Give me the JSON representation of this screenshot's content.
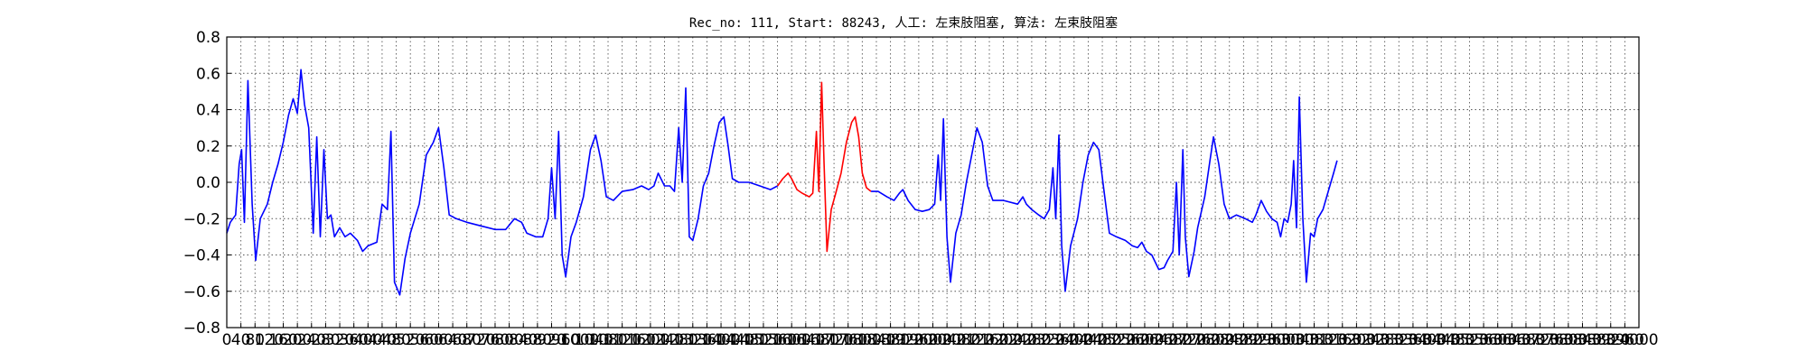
{
  "chart_data": {
    "type": "line",
    "title": "Rec_no: 111, Start: 88243, 人工: 左束肢阻塞, 算法: 左束肢阻塞",
    "xlabel": "",
    "ylabel": "",
    "xlim": [
      0,
      4000
    ],
    "ylim": [
      -0.8,
      0.8
    ],
    "grid": true,
    "colors": {
      "normal": "#0000ff",
      "highlight": "#ff0000",
      "grid": "#555555"
    },
    "x_tick_labels": [
      "0",
      "40",
      "80",
      "120",
      "160",
      "200",
      "240",
      "280",
      "320",
      "360",
      "400",
      "440",
      "480",
      "520",
      "560",
      "600",
      "640",
      "680",
      "720",
      "760",
      "800",
      "840",
      "880",
      "920",
      "960",
      "1000",
      "1040",
      "1080",
      "1120",
      "1160",
      "1200",
      "1240",
      "1280",
      "1320",
      "1360",
      "1400",
      "1440",
      "1480",
      "1520",
      "1560",
      "1600",
      "1640",
      "1680",
      "1720",
      "1760",
      "1800",
      "1840",
      "1880",
      "1920",
      "1960",
      "2000",
      "2040",
      "2080",
      "2120",
      "2160",
      "2200",
      "2240",
      "2280",
      "2320",
      "2360",
      "2400",
      "2440",
      "2480",
      "2520",
      "2560",
      "2600",
      "2640",
      "2680",
      "2720",
      "2760",
      "2800",
      "2840",
      "2880",
      "2920",
      "2960",
      "3000",
      "3040",
      "3080",
      "3120",
      "3160",
      "3200",
      "3240",
      "3280",
      "3320",
      "3360",
      "3400",
      "3440",
      "3480",
      "3520",
      "3560",
      "3600",
      "3640",
      "3680",
      "3720",
      "3760",
      "3800",
      "3840",
      "3880",
      "3920",
      "3960",
      "4000"
    ],
    "y_tick_labels": [
      "−0.8",
      "−0.6",
      "−0.4",
      "−0.2",
      "0.0",
      "0.2",
      "0.4",
      "0.6",
      "0.8"
    ],
    "y_ticks": [
      -0.8,
      -0.6,
      -0.4,
      -0.2,
      0.0,
      0.2,
      0.4,
      0.6,
      0.8
    ],
    "series": [
      {
        "highlight": false,
        "points": [
          [
            0,
            -0.28
          ],
          [
            10,
            -0.22
          ],
          [
            25,
            -0.18
          ],
          [
            35,
            0.1
          ],
          [
            42,
            0.18
          ],
          [
            50,
            -0.22
          ],
          [
            60,
            0.56
          ],
          [
            72,
            -0.12
          ],
          [
            82,
            -0.43
          ],
          [
            95,
            -0.2
          ],
          [
            115,
            -0.12
          ],
          [
            130,
            0.0
          ],
          [
            145,
            0.1
          ],
          [
            160,
            0.22
          ],
          [
            175,
            0.37
          ],
          [
            188,
            0.46
          ],
          [
            200,
            0.38
          ],
          [
            210,
            0.62
          ],
          [
            220,
            0.43
          ],
          [
            232,
            0.3
          ],
          [
            245,
            -0.28
          ],
          [
            255,
            0.25
          ],
          [
            265,
            -0.3
          ],
          [
            275,
            0.18
          ],
          [
            285,
            -0.2
          ],
          [
            295,
            -0.18
          ],
          [
            305,
            -0.3
          ],
          [
            320,
            -0.25
          ],
          [
            335,
            -0.3
          ],
          [
            350,
            -0.28
          ],
          [
            370,
            -0.32
          ],
          [
            385,
            -0.38
          ],
          [
            400,
            -0.35
          ],
          [
            425,
            -0.33
          ],
          [
            440,
            -0.12
          ],
          [
            455,
            -0.15
          ],
          [
            465,
            0.28
          ],
          [
            475,
            -0.55
          ],
          [
            490,
            -0.62
          ],
          [
            505,
            -0.42
          ],
          [
            520,
            -0.28
          ],
          [
            545,
            -0.12
          ],
          [
            565,
            0.15
          ],
          [
            585,
            0.22
          ],
          [
            600,
            0.3
          ],
          [
            615,
            0.08
          ],
          [
            630,
            -0.18
          ],
          [
            650,
            -0.2
          ],
          [
            680,
            -0.22
          ],
          [
            720,
            -0.24
          ],
          [
            760,
            -0.26
          ],
          [
            790,
            -0.26
          ],
          [
            815,
            -0.2
          ],
          [
            835,
            -0.22
          ],
          [
            850,
            -0.28
          ],
          [
            875,
            -0.3
          ],
          [
            895,
            -0.3
          ],
          [
            910,
            -0.2
          ],
          [
            920,
            0.08
          ],
          [
            930,
            -0.2
          ],
          [
            940,
            0.28
          ],
          [
            950,
            -0.4
          ],
          [
            960,
            -0.52
          ],
          [
            975,
            -0.3
          ],
          [
            990,
            -0.22
          ],
          [
            1010,
            -0.08
          ],
          [
            1030,
            0.18
          ],
          [
            1045,
            0.26
          ],
          [
            1060,
            0.12
          ],
          [
            1075,
            -0.08
          ],
          [
            1095,
            -0.1
          ],
          [
            1120,
            -0.05
          ],
          [
            1150,
            -0.04
          ],
          [
            1175,
            -0.02
          ],
          [
            1195,
            -0.04
          ],
          [
            1210,
            -0.02
          ],
          [
            1222,
            0.05
          ],
          [
            1240,
            -0.02
          ],
          [
            1255,
            -0.02
          ],
          [
            1268,
            -0.05
          ],
          [
            1280,
            0.3
          ],
          [
            1290,
            0.0
          ],
          [
            1300,
            0.52
          ],
          [
            1310,
            -0.3
          ],
          [
            1320,
            -0.32
          ],
          [
            1335,
            -0.2
          ],
          [
            1350,
            -0.02
          ],
          [
            1365,
            0.05
          ],
          [
            1380,
            0.2
          ],
          [
            1395,
            0.33
          ],
          [
            1408,
            0.36
          ],
          [
            1420,
            0.2
          ],
          [
            1432,
            0.02
          ],
          [
            1450,
            0.0
          ],
          [
            1480,
            0.0
          ],
          [
            1510,
            -0.02
          ],
          [
            1540,
            -0.04
          ],
          [
            1560,
            -0.02
          ]
        ]
      },
      {
        "highlight": true,
        "points": [
          [
            1560,
            -0.02
          ],
          [
            1575,
            0.02
          ],
          [
            1590,
            0.05
          ],
          [
            1600,
            0.02
          ],
          [
            1615,
            -0.04
          ],
          [
            1630,
            -0.06
          ],
          [
            1650,
            -0.08
          ],
          [
            1660,
            -0.06
          ],
          [
            1670,
            0.28
          ],
          [
            1677,
            -0.05
          ],
          [
            1685,
            0.55
          ],
          [
            1692,
            0.1
          ],
          [
            1700,
            -0.38
          ],
          [
            1712,
            -0.15
          ],
          [
            1725,
            -0.06
          ],
          [
            1740,
            0.05
          ],
          [
            1755,
            0.22
          ],
          [
            1770,
            0.33
          ],
          [
            1780,
            0.36
          ],
          [
            1790,
            0.25
          ],
          [
            1800,
            0.05
          ],
          [
            1812,
            -0.03
          ],
          [
            1825,
            -0.05
          ]
        ]
      },
      {
        "highlight": false,
        "points": [
          [
            1825,
            -0.05
          ],
          [
            1845,
            -0.05
          ],
          [
            1870,
            -0.08
          ],
          [
            1890,
            -0.1
          ],
          [
            1905,
            -0.06
          ],
          [
            1915,
            -0.04
          ],
          [
            1930,
            -0.1
          ],
          [
            1950,
            -0.15
          ],
          [
            1970,
            -0.16
          ],
          [
            1990,
            -0.15
          ],
          [
            2005,
            -0.12
          ],
          [
            2015,
            0.15
          ],
          [
            2022,
            -0.1
          ],
          [
            2030,
            0.35
          ],
          [
            2040,
            -0.3
          ],
          [
            2050,
            -0.55
          ],
          [
            2065,
            -0.28
          ],
          [
            2080,
            -0.18
          ],
          [
            2095,
            0.0
          ],
          [
            2110,
            0.15
          ],
          [
            2125,
            0.3
          ],
          [
            2140,
            0.22
          ],
          [
            2155,
            -0.02
          ],
          [
            2170,
            -0.1
          ],
          [
            2200,
            -0.1
          ],
          [
            2240,
            -0.12
          ],
          [
            2255,
            -0.08
          ],
          [
            2265,
            -0.12
          ],
          [
            2280,
            -0.15
          ],
          [
            2300,
            -0.18
          ],
          [
            2315,
            -0.2
          ],
          [
            2330,
            -0.15
          ],
          [
            2340,
            0.08
          ],
          [
            2348,
            -0.2
          ],
          [
            2357,
            0.26
          ],
          [
            2365,
            -0.35
          ],
          [
            2375,
            -0.6
          ],
          [
            2390,
            -0.35
          ],
          [
            2410,
            -0.2
          ],
          [
            2425,
            0.0
          ],
          [
            2440,
            0.15
          ],
          [
            2455,
            0.22
          ],
          [
            2470,
            0.18
          ],
          [
            2485,
            -0.05
          ],
          [
            2500,
            -0.28
          ],
          [
            2520,
            -0.3
          ],
          [
            2545,
            -0.32
          ],
          [
            2565,
            -0.35
          ],
          [
            2580,
            -0.36
          ],
          [
            2592,
            -0.33
          ],
          [
            2605,
            -0.38
          ],
          [
            2620,
            -0.4
          ],
          [
            2640,
            -0.48
          ],
          [
            2655,
            -0.47
          ],
          [
            2665,
            -0.43
          ],
          [
            2680,
            -0.38
          ],
          [
            2690,
            0.0
          ],
          [
            2698,
            -0.4
          ],
          [
            2708,
            0.18
          ],
          [
            2715,
            -0.3
          ],
          [
            2725,
            -0.52
          ],
          [
            2740,
            -0.38
          ],
          [
            2750,
            -0.25
          ],
          [
            2770,
            -0.08
          ],
          [
            2785,
            0.12
          ],
          [
            2795,
            0.25
          ],
          [
            2810,
            0.1
          ],
          [
            2825,
            -0.12
          ],
          [
            2840,
            -0.2
          ],
          [
            2860,
            -0.18
          ],
          [
            2885,
            -0.2
          ],
          [
            2905,
            -0.22
          ],
          [
            2915,
            -0.18
          ],
          [
            2930,
            -0.1
          ],
          [
            2945,
            -0.16
          ],
          [
            2960,
            -0.2
          ],
          [
            2975,
            -0.22
          ],
          [
            2985,
            -0.3
          ],
          [
            2995,
            -0.2
          ],
          [
            3005,
            -0.22
          ],
          [
            3015,
            -0.12
          ],
          [
            3022,
            0.12
          ],
          [
            3030,
            -0.25
          ],
          [
            3038,
            0.47
          ],
          [
            3048,
            -0.2
          ],
          [
            3058,
            -0.55
          ],
          [
            3070,
            -0.28
          ],
          [
            3080,
            -0.3
          ],
          [
            3090,
            -0.2
          ],
          [
            3105,
            -0.15
          ],
          [
            3120,
            -0.05
          ],
          [
            3135,
            0.05
          ],
          [
            3145,
            0.12
          ]
        ]
      }
    ]
  }
}
